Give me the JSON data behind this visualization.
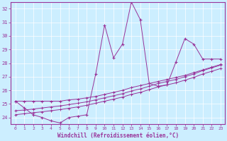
{
  "xlabel": "Windchill (Refroidissement éolien,°C)",
  "x": [
    0,
    1,
    2,
    3,
    4,
    5,
    6,
    7,
    8,
    9,
    10,
    11,
    12,
    13,
    14,
    15,
    16,
    17,
    18,
    19,
    20,
    21,
    22,
    23
  ],
  "y_main": [
    25.2,
    24.7,
    24.2,
    24.0,
    23.75,
    23.6,
    24.0,
    24.1,
    24.2,
    27.2,
    30.8,
    28.4,
    29.4,
    32.5,
    31.2,
    26.5,
    26.3,
    26.4,
    28.1,
    29.8,
    29.4,
    28.3,
    28.3,
    28.3
  ],
  "y_line1": [
    25.2,
    25.2,
    25.2,
    25.2,
    25.2,
    25.2,
    25.3,
    25.35,
    25.45,
    25.55,
    25.7,
    25.85,
    26.0,
    26.2,
    26.35,
    26.5,
    26.65,
    26.8,
    26.95,
    27.1,
    27.3,
    27.5,
    27.7,
    27.9
  ],
  "y_line2": [
    24.5,
    24.55,
    24.62,
    24.7,
    24.78,
    24.85,
    24.95,
    25.05,
    25.15,
    25.3,
    25.45,
    25.6,
    25.75,
    25.95,
    26.1,
    26.3,
    26.5,
    26.65,
    26.8,
    27.0,
    27.2,
    27.45,
    27.65,
    27.85
  ],
  "y_line3": [
    24.2,
    24.28,
    24.35,
    24.42,
    24.5,
    24.58,
    24.68,
    24.78,
    24.9,
    25.05,
    25.2,
    25.35,
    25.5,
    25.7,
    25.85,
    26.05,
    26.25,
    26.4,
    26.55,
    26.75,
    26.95,
    27.2,
    27.4,
    27.6
  ],
  "color": "#993399",
  "bg_color": "#cceeff",
  "ylim": [
    23.5,
    32.5
  ],
  "xlim": [
    -0.5,
    23.5
  ],
  "yticks": [
    24,
    25,
    26,
    27,
    28,
    29,
    30,
    31,
    32
  ],
  "xticks": [
    0,
    1,
    2,
    3,
    4,
    5,
    6,
    7,
    8,
    9,
    10,
    11,
    12,
    13,
    14,
    15,
    16,
    17,
    18,
    19,
    20,
    21,
    22,
    23
  ]
}
